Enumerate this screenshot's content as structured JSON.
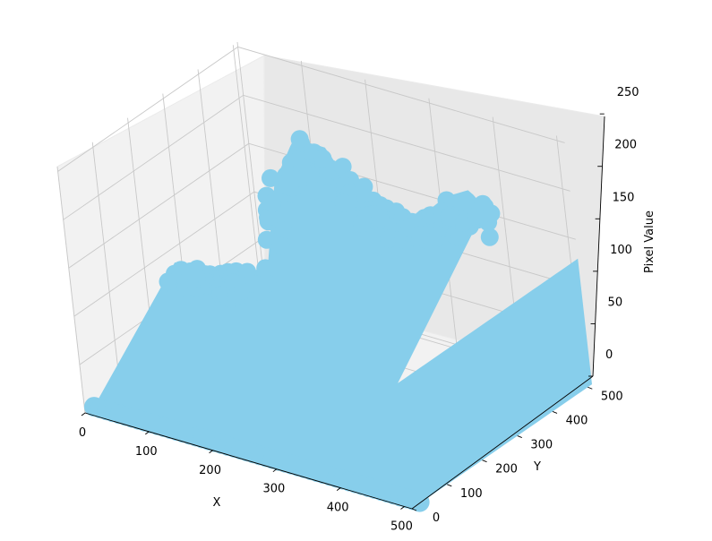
{
  "chart_data": {
    "type": "scatter",
    "title": "",
    "xlabel": "X",
    "ylabel": "Y",
    "zlabel": "Pixel Value",
    "xlim": [
      0,
      512
    ],
    "ylim": [
      0,
      512
    ],
    "zlim": [
      0,
      255
    ],
    "x_ticks": [
      "0",
      "100",
      "200",
      "300",
      "400",
      "500"
    ],
    "y_ticks": [
      "0",
      "100",
      "200",
      "300",
      "400",
      "500"
    ],
    "z_ticks": [
      "0",
      "50",
      "100",
      "150",
      "200",
      "250"
    ],
    "grid": true,
    "marker_color": "#87ceeb",
    "surface_profile": [
      {
        "x": 0,
        "top": 85,
        "bottom": 0
      },
      {
        "x": 30,
        "top": 80,
        "bottom": 0
      },
      {
        "x": 70,
        "top": 90,
        "bottom": 0
      },
      {
        "x": 120,
        "top": 95,
        "bottom": 0
      },
      {
        "x": 150,
        "top": 110,
        "bottom": 0
      },
      {
        "x": 175,
        "top": 200,
        "bottom": 0
      },
      {
        "x": 215,
        "top": 255,
        "bottom": 0
      },
      {
        "x": 265,
        "top": 255,
        "bottom": 0
      },
      {
        "x": 300,
        "top": 220,
        "bottom": 0
      },
      {
        "x": 350,
        "top": 215,
        "bottom": 0
      },
      {
        "x": 390,
        "top": 205,
        "bottom": 0
      },
      {
        "x": 420,
        "top": 220,
        "bottom": 0
      },
      {
        "x": 450,
        "top": 240,
        "bottom": 0
      },
      {
        "x": 490,
        "top": 255,
        "bottom": 0
      },
      {
        "x": 512,
        "top": 240,
        "bottom": 0
      }
    ]
  }
}
